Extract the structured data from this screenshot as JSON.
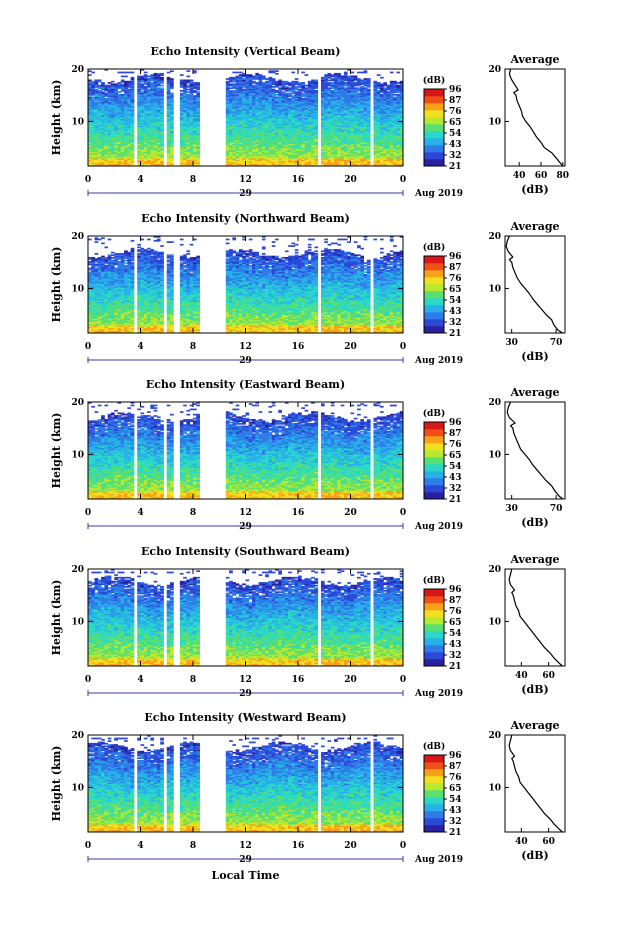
{
  "chart_data": [
    {
      "type": "heatmap",
      "title": "Echo Intensity (Vertical Beam)",
      "ylabel": "Height (km)",
      "x_ticks": [
        "0",
        "4",
        "8",
        "12",
        "16",
        "20",
        "0"
      ],
      "y_ticks": [
        "10",
        "20"
      ],
      "xlim": [
        0,
        24
      ],
      "ylim": [
        1.5,
        20
      ],
      "colorbar": {
        "unit": "(dB)",
        "ticks": [
          "96",
          "87",
          "76",
          "65",
          "54",
          "43",
          "32",
          "21"
        ]
      },
      "data_gaps_hours": [
        [
          3.5,
          3.8
        ],
        [
          5.8,
          6.0
        ],
        [
          6.6,
          6.9
        ],
        [
          8.6,
          10.4
        ],
        [
          17.6,
          17.8
        ],
        [
          21.6,
          21.8
        ]
      ],
      "cloud_top_km": 18.5,
      "date_left": "29",
      "date_right": "Aug 2019",
      "profile": {
        "title": "Average",
        "xlabel": "(dB)",
        "x_ticks": [
          "40",
          "60",
          "80"
        ],
        "xlim": [
          27,
          82
        ],
        "y_ticks": [
          "10",
          "20"
        ],
        "ylim": [
          1.5,
          20
        ],
        "height_km": [
          1.5,
          2.0,
          3.0,
          4.0,
          5.0,
          6.0,
          7.0,
          8.0,
          9.0,
          10.0,
          11.0,
          12.0,
          13.0,
          14.0,
          15.0,
          15.5,
          16.0,
          17.0,
          18.0,
          19.0,
          20.0
        ],
        "db": [
          80,
          78,
          74,
          70,
          63,
          60,
          56,
          53,
          50,
          46,
          43,
          42,
          40,
          38,
          37,
          35,
          39,
          36,
          33,
          31,
          32
        ]
      }
    },
    {
      "type": "heatmap",
      "title": "Echo Intensity (Northward Beam)",
      "ylabel": "Height (km)",
      "x_ticks": [
        "0",
        "4",
        "8",
        "12",
        "16",
        "20",
        "0"
      ],
      "y_ticks": [
        "10",
        "20"
      ],
      "xlim": [
        0,
        24
      ],
      "ylim": [
        1.5,
        20
      ],
      "colorbar": {
        "unit": "(dB)",
        "ticks": [
          "96",
          "87",
          "76",
          "65",
          "54",
          "43",
          "32",
          "21"
        ]
      },
      "data_gaps_hours": [
        [
          3.5,
          3.8
        ],
        [
          5.8,
          6.0
        ],
        [
          6.6,
          6.9
        ],
        [
          8.6,
          10.4
        ],
        [
          17.6,
          17.8
        ],
        [
          21.6,
          21.8
        ]
      ],
      "cloud_top_km": 17.0,
      "date_left": "29",
      "date_right": "Aug 2019",
      "profile": {
        "title": "Average",
        "xlabel": "(dB)",
        "x_ticks": [
          "30",
          "70"
        ],
        "xlim": [
          24,
          78
        ],
        "y_ticks": [
          "10",
          "20"
        ],
        "ylim": [
          1.5,
          20
        ],
        "height_km": [
          1.5,
          2.0,
          3.0,
          4.0,
          5.0,
          6.0,
          7.0,
          8.0,
          9.0,
          10.0,
          11.0,
          12.0,
          13.0,
          14.0,
          15.0,
          15.5,
          16.0,
          17.0,
          18.0,
          19.0,
          20.0
        ],
        "db": [
          76,
          72,
          68,
          66,
          61,
          57,
          53,
          49,
          46,
          42,
          38,
          35,
          33,
          31,
          30,
          28,
          31,
          27,
          25,
          26,
          28
        ]
      }
    },
    {
      "type": "heatmap",
      "title": "Echo Intensity (Eastward Beam)",
      "ylabel": "Height (km)",
      "x_ticks": [
        "0",
        "4",
        "8",
        "12",
        "16",
        "20",
        "0"
      ],
      "y_ticks": [
        "10",
        "20"
      ],
      "xlim": [
        0,
        24
      ],
      "ylim": [
        1.5,
        20
      ],
      "colorbar": {
        "unit": "(dB)",
        "ticks": [
          "96",
          "87",
          "76",
          "65",
          "54",
          "43",
          "32",
          "21"
        ]
      },
      "data_gaps_hours": [
        [
          3.5,
          3.8
        ],
        [
          5.8,
          6.0
        ],
        [
          6.6,
          6.9
        ],
        [
          8.6,
          10.4
        ],
        [
          17.6,
          17.8
        ],
        [
          21.6,
          21.8
        ]
      ],
      "cloud_top_km": 17.5,
      "date_left": "29",
      "date_right": "Aug 2019",
      "profile": {
        "title": "Average",
        "xlabel": "(dB)",
        "x_ticks": [
          "30",
          "70"
        ],
        "xlim": [
          24,
          78
        ],
        "y_ticks": [
          "10",
          "20"
        ],
        "ylim": [
          1.5,
          20
        ],
        "height_km": [
          1.5,
          2.0,
          3.0,
          4.0,
          5.0,
          6.0,
          7.0,
          8.0,
          9.0,
          10.0,
          11.0,
          12.0,
          13.0,
          14.0,
          15.0,
          15.5,
          16.0,
          17.0,
          18.0,
          19.0,
          20.0
        ],
        "db": [
          76,
          73,
          69,
          66,
          61,
          57,
          53,
          49,
          46,
          42,
          38,
          36,
          34,
          32,
          31,
          29,
          33,
          28,
          26,
          27,
          29
        ]
      }
    },
    {
      "type": "heatmap",
      "title": "Echo Intensity (Southward Beam)",
      "ylabel": "Height (km)",
      "x_ticks": [
        "0",
        "4",
        "8",
        "12",
        "16",
        "20",
        "0"
      ],
      "y_ticks": [
        "10",
        "20"
      ],
      "xlim": [
        0,
        24
      ],
      "ylim": [
        1.5,
        20
      ],
      "colorbar": {
        "unit": "(dB)",
        "ticks": [
          "96",
          "87",
          "76",
          "65",
          "54",
          "43",
          "32",
          "21"
        ]
      },
      "data_gaps_hours": [
        [
          3.5,
          3.8
        ],
        [
          5.8,
          6.0
        ],
        [
          6.6,
          6.9
        ],
        [
          8.6,
          10.4
        ],
        [
          17.6,
          17.8
        ],
        [
          21.6,
          21.8
        ]
      ],
      "cloud_top_km": 18.0,
      "date_left": "29",
      "date_right": "Aug 2019",
      "profile": {
        "title": "Average",
        "xlabel": "(dB)",
        "x_ticks": [
          "40",
          "60"
        ],
        "xlim": [
          28,
          72
        ],
        "y_ticks": [
          "10",
          "20"
        ],
        "ylim": [
          1.5,
          20
        ],
        "height_km": [
          1.5,
          2.0,
          3.0,
          4.0,
          5.0,
          6.0,
          7.0,
          8.0,
          9.0,
          10.0,
          11.0,
          12.0,
          13.0,
          14.0,
          15.0,
          15.5,
          16.0,
          17.0,
          18.0,
          19.0,
          20.0
        ],
        "db": [
          70,
          68,
          64,
          61,
          57,
          54,
          51,
          48,
          45,
          42,
          39,
          38,
          36,
          35,
          34,
          33,
          35,
          32,
          31,
          32,
          33
        ]
      }
    },
    {
      "type": "heatmap",
      "title": "Echo Intensity (Westward Beam)",
      "ylabel": "Height (km)",
      "x_ticks": [
        "0",
        "4",
        "8",
        "12",
        "16",
        "20",
        "0"
      ],
      "y_ticks": [
        "10",
        "20"
      ],
      "xlim": [
        0,
        24
      ],
      "ylim": [
        1.5,
        20
      ],
      "colorbar": {
        "unit": "(dB)",
        "ticks": [
          "96",
          "87",
          "76",
          "65",
          "54",
          "43",
          "32",
          "21"
        ]
      },
      "data_gaps_hours": [
        [
          3.5,
          3.8
        ],
        [
          5.8,
          6.0
        ],
        [
          6.6,
          6.9
        ],
        [
          8.6,
          10.4
        ],
        [
          17.6,
          17.8
        ],
        [
          21.6,
          21.8
        ]
      ],
      "cloud_top_km": 18.0,
      "date_left": "29",
      "date_right": "Aug 2019",
      "xlabel": "Local Time",
      "profile": {
        "title": "Average",
        "xlabel": "(dB)",
        "x_ticks": [
          "40",
          "60"
        ],
        "xlim": [
          28,
          72
        ],
        "y_ticks": [
          "10",
          "20"
        ],
        "ylim": [
          1.5,
          20
        ],
        "height_km": [
          1.5,
          2.0,
          3.0,
          4.0,
          5.0,
          6.0,
          7.0,
          8.0,
          9.0,
          10.0,
          11.0,
          12.0,
          13.0,
          14.0,
          15.0,
          15.5,
          16.0,
          17.0,
          18.0,
          19.0,
          20.0
        ],
        "db": [
          70,
          68,
          64,
          61,
          57,
          54,
          51,
          48,
          45,
          42,
          39,
          38,
          36,
          35,
          34,
          33,
          35,
          32,
          31,
          32,
          33
        ]
      }
    }
  ],
  "colormap": [
    "#2a20a0",
    "#2c48d8",
    "#2e7ce8",
    "#28b0e8",
    "#2ad8c8",
    "#5ae070",
    "#b8e830",
    "#f0e020",
    "#f8a018",
    "#f05018",
    "#d81818"
  ]
}
